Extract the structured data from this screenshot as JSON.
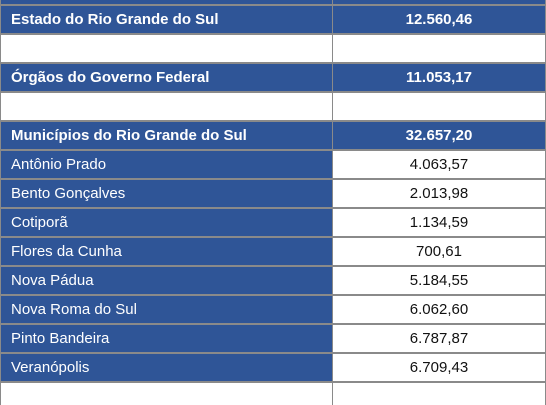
{
  "summary": [
    {
      "label": "Estado do Rio Grande do Sul",
      "value": "12.560,46"
    },
    {
      "label": "Órgãos do Governo Federal",
      "value": "11.053,17"
    }
  ],
  "municipios": {
    "label": "Municípios do Rio Grande do Sul",
    "value": "32.657,20",
    "rows": [
      {
        "name": "Antônio Prado",
        "value": "4.063,57"
      },
      {
        "name": "Bento Gonçalves",
        "value": "2.013,98"
      },
      {
        "name": "Cotiporã",
        "value": "1.134,59"
      },
      {
        "name": "Flores da Cunha",
        "value": "700,61"
      },
      {
        "name": "Nova Pádua",
        "value": "5.184,55"
      },
      {
        "name": "Nova Roma do Sul",
        "value": "6.062,60"
      },
      {
        "name": "Pinto Bandeira",
        "value": "6.787,87"
      },
      {
        "name": "Veranópolis",
        "value": "6.709,43"
      }
    ]
  }
}
